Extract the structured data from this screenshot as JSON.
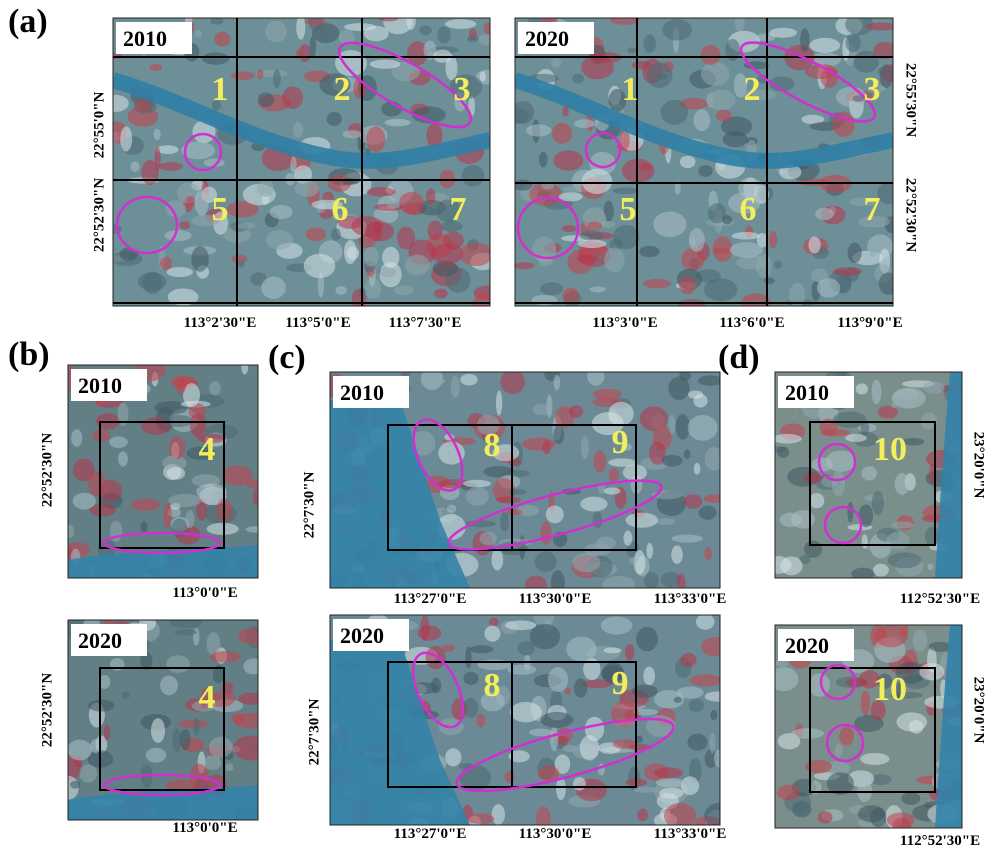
{
  "panels": [
    {
      "label": "(a)",
      "images": [
        {
          "year": "2010",
          "zones": [
            "1",
            "2",
            "3",
            "5",
            "6",
            "7"
          ],
          "y_labels": [
            "22°55'0\"N",
            "22°52'30\"N"
          ],
          "x_labels": [
            "113°2'30\"E",
            "113°5'0\"E",
            "113°7'30\"E"
          ]
        },
        {
          "year": "2020",
          "zones": [
            "1",
            "2",
            "3",
            "5",
            "6",
            "7"
          ],
          "y_labels": [
            "22°55'30\"N",
            "22°52'30\"N"
          ],
          "x_labels": [
            "113°3'0\"E",
            "113°6'0\"E",
            "113°9'0\"E"
          ]
        }
      ]
    },
    {
      "label": "(b)",
      "images": [
        {
          "year": "2010",
          "zones": [
            "4"
          ],
          "y_labels": [
            "22°52'30\"N"
          ],
          "x_labels": [
            "113°0'0\"E"
          ]
        },
        {
          "year": "2020",
          "zones": [
            "4"
          ],
          "y_labels": [
            "22°52'30\"N"
          ],
          "x_labels": [
            "113°0'0\"E"
          ]
        }
      ]
    },
    {
      "label": "(c)",
      "images": [
        {
          "year": "2010",
          "zones": [
            "8",
            "9"
          ],
          "y_labels": [
            "22°7'30\"N"
          ],
          "x_labels": [
            "113°27'0\"E",
            "113°30'0\"E",
            "113°33'0\"E"
          ]
        },
        {
          "year": "2020",
          "zones": [
            "8",
            "9"
          ],
          "y_labels": [
            "22°7'30\"N"
          ],
          "x_labels": [
            "113°27'0\"E",
            "113°30'0\"E",
            "113°33'0\"E"
          ]
        }
      ]
    },
    {
      "label": "(d)",
      "images": [
        {
          "year": "2010",
          "zones": [
            "10"
          ],
          "y_labels": [
            "23°20'0\"N"
          ],
          "x_labels": [
            "112°52'30\"E"
          ]
        },
        {
          "year": "2020",
          "zones": [
            "10"
          ],
          "y_labels": [
            "23°20'0\"N"
          ],
          "x_labels": [
            "112°52'30\"E"
          ]
        }
      ]
    }
  ]
}
